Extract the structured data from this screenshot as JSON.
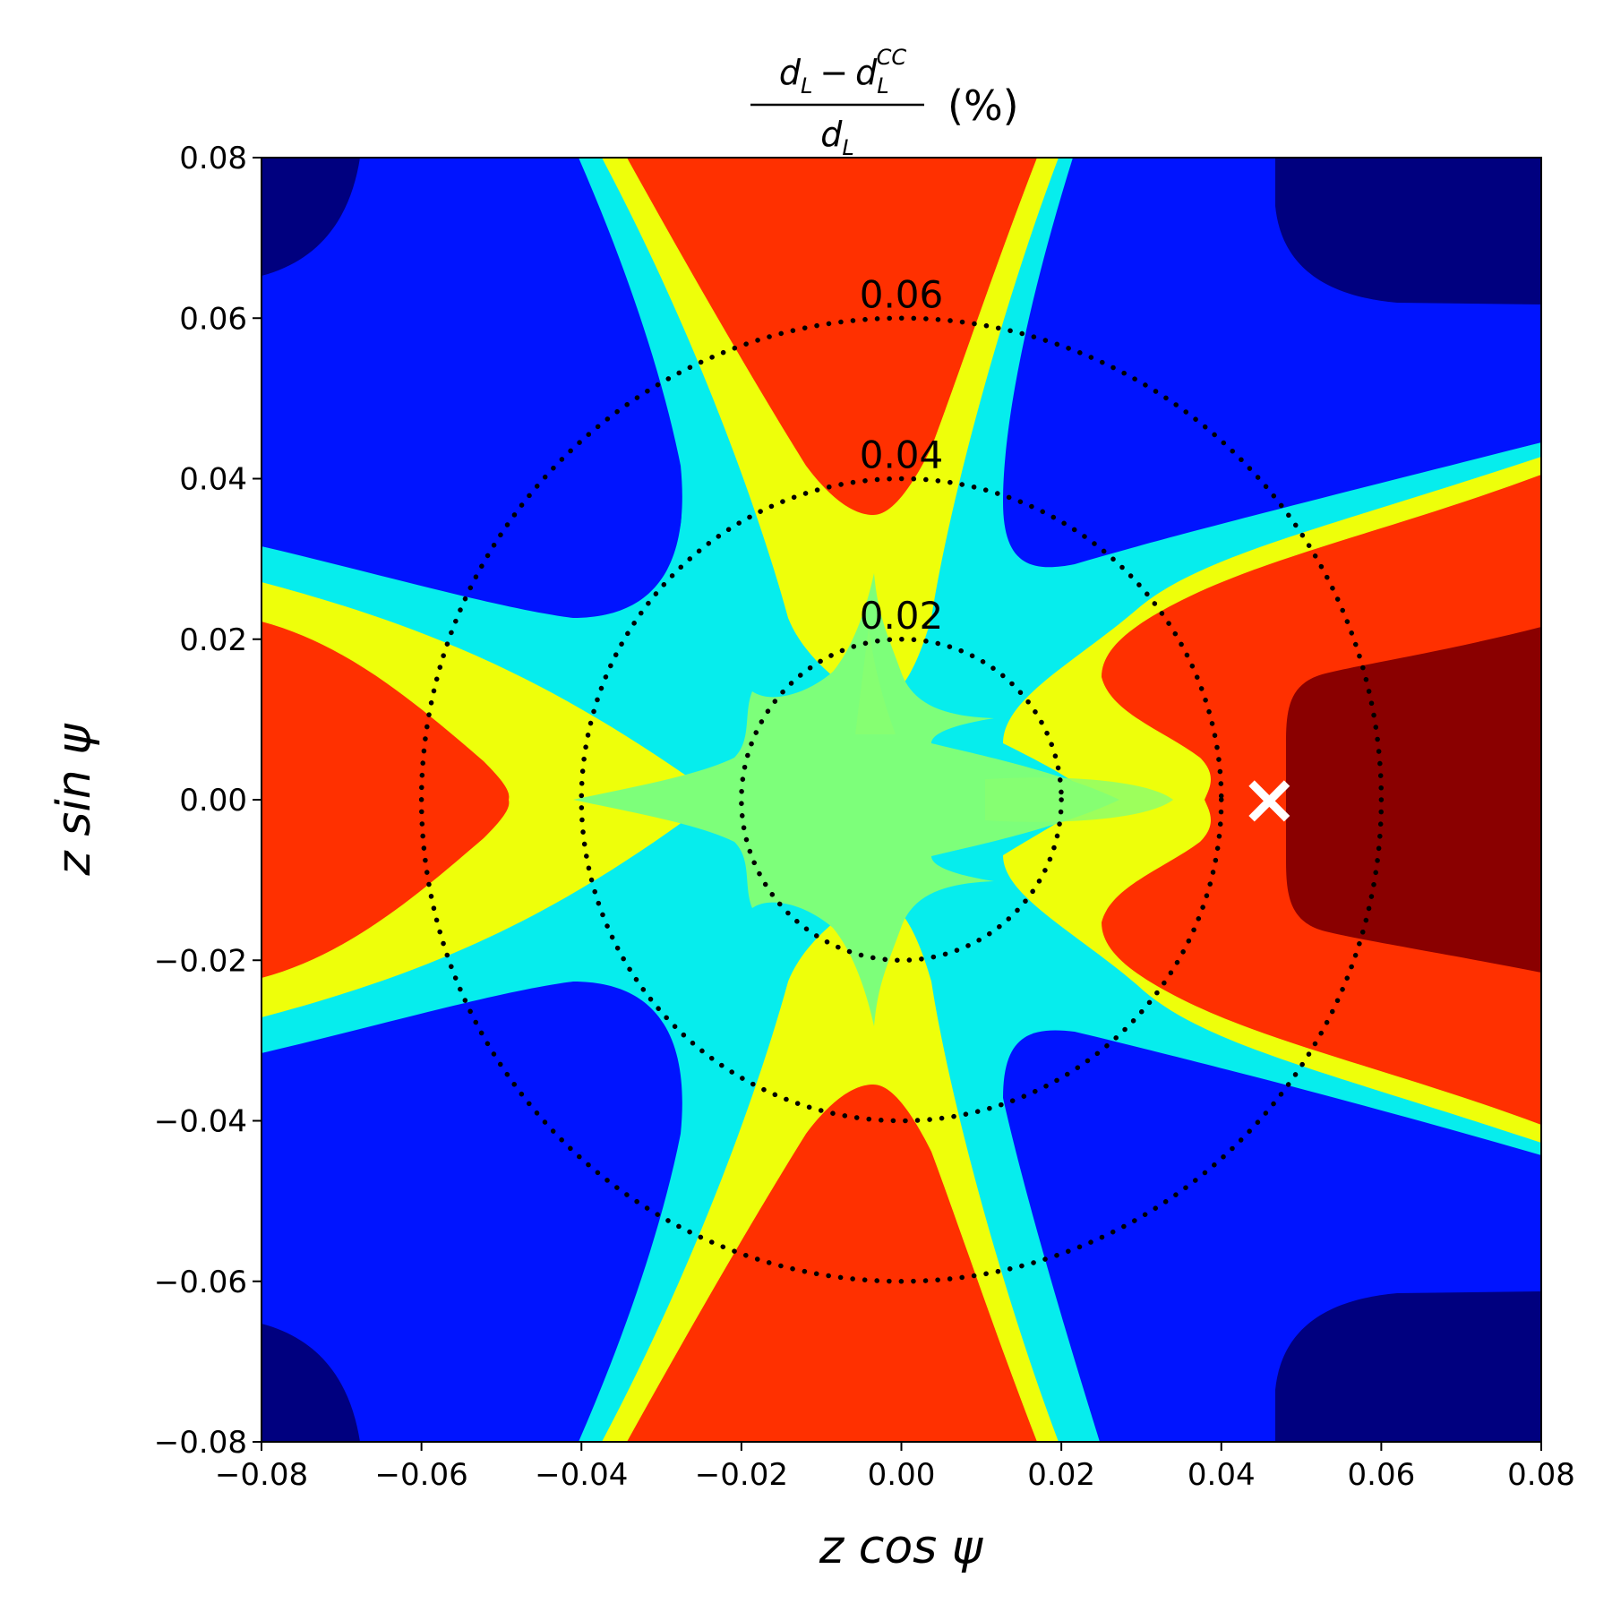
{
  "chart_data": {
    "type": "heatmap",
    "title": {
      "numerator_base": "d",
      "numerator_sub": "L",
      "minus": "−",
      "sub_base": "d",
      "sub_sub": "L",
      "sub_sup": "CC",
      "denominator_base": "d",
      "denominator_sub": "L",
      "unit": "(%)"
    },
    "xlabel": "z cos ψ",
    "ylabel": "z sin ψ",
    "xlim": [
      -0.08,
      0.08
    ],
    "ylim": [
      -0.08,
      0.08
    ],
    "xticks": [
      -0.08,
      -0.06,
      -0.04,
      -0.02,
      0.0,
      0.02,
      0.04,
      0.06,
      0.08
    ],
    "xtick_labels": [
      "−0.08",
      "−0.06",
      "−0.04",
      "−0.02",
      "0.00",
      "0.02",
      "0.04",
      "0.06",
      "0.08"
    ],
    "yticks": [
      0.08,
      0.06,
      0.04,
      0.02,
      0.0,
      -0.02,
      -0.04,
      -0.06,
      -0.08
    ],
    "ytick_labels": [
      "0.08",
      "0.06",
      "0.04",
      "0.02",
      "0.00",
      "−0.02",
      "−0.04",
      "−0.06",
      "−0.08"
    ],
    "colormap": "jet",
    "level_colors": {
      "darkest_blue": "#00007f",
      "blue": "#0014ff",
      "cyan": "#06eded",
      "green": "#7dff7a",
      "yellow": "#eeff0a",
      "orange_red": "#ff3000",
      "dark_red": "#8a0000"
    },
    "circles": [
      {
        "radius": 0.02,
        "label": "0.02"
      },
      {
        "radius": 0.04,
        "label": "0.04"
      },
      {
        "radius": 0.06,
        "label": "0.06"
      }
    ],
    "marker": {
      "x": 0.046,
      "y": 0.0,
      "symbol": "×",
      "color": "#ffffff"
    }
  }
}
